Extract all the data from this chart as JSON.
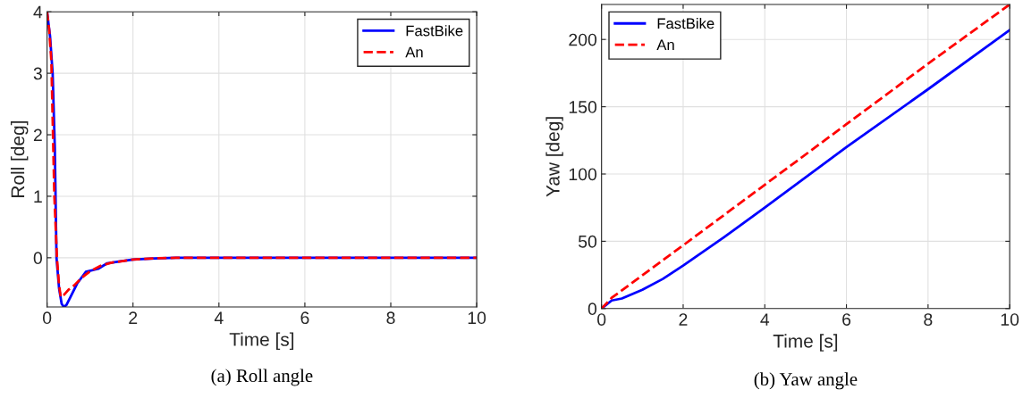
{
  "chart_data": [
    {
      "type": "line",
      "xlabel": "Time [s]",
      "ylabel": "Roll [deg]",
      "xlim": [
        0,
        10
      ],
      "ylim": [
        -0.8,
        4
      ],
      "xticks": [
        0,
        2,
        4,
        6,
        8,
        10
      ],
      "yticks": [
        0,
        1,
        2,
        3,
        4
      ],
      "grid": true,
      "legend": "top right",
      "annotations": [
        "(a) Roll angle"
      ],
      "series": [
        {
          "name": "FastBike",
          "color": "#0000ff",
          "line_style": "solid",
          "x": [
            0,
            0.07,
            0.13,
            0.18,
            0.22,
            0.28,
            0.34,
            0.39,
            0.45,
            0.55,
            0.7,
            0.9,
            1.19,
            1.4,
            1.7,
            2,
            2.5,
            3,
            4,
            6,
            8,
            10
          ],
          "values": [
            4,
            3.6,
            3.0,
            1.8,
            0,
            -0.5,
            -0.75,
            -0.8,
            -0.77,
            -0.63,
            -0.42,
            -0.23,
            -0.18,
            -0.09,
            -0.06,
            -0.03,
            -0.01,
            0,
            0,
            0,
            0,
            0
          ]
        },
        {
          "name": "An",
          "color": "#ff0000",
          "line_style": "dashed",
          "x": [
            0,
            0.05,
            0.1,
            0.17,
            0.23,
            0.28,
            0.32,
            0.4,
            0.5,
            0.63,
            0.8,
            1.0,
            1.25,
            1.5,
            2,
            2.5,
            3,
            4,
            6,
            8,
            10
          ],
          "values": [
            4,
            3.7,
            3.2,
            1.0,
            0,
            -0.45,
            -0.64,
            -0.6,
            -0.52,
            -0.45,
            -0.33,
            -0.22,
            -0.13,
            -0.08,
            -0.03,
            -0.01,
            0,
            0,
            0,
            0,
            0
          ]
        }
      ]
    },
    {
      "type": "line",
      "xlabel": "Time [s]",
      "ylabel": "Yaw [deg]",
      "xlim": [
        0,
        10
      ],
      "ylim": [
        0,
        226
      ],
      "xticks": [
        0,
        2,
        4,
        6,
        8,
        10
      ],
      "yticks": [
        0,
        50,
        100,
        150,
        200
      ],
      "grid": true,
      "legend": "top left",
      "annotations": [
        "(b) Yaw angle"
      ],
      "series": [
        {
          "name": "FastBike",
          "color": "#0000ff",
          "line_style": "solid",
          "x": [
            0,
            0.25,
            0.5,
            1,
            1.5,
            2,
            3,
            4,
            6,
            8,
            10
          ],
          "values": [
            0,
            6,
            7.5,
            14,
            22,
            32,
            53,
            75,
            120,
            163,
            207
          ]
        },
        {
          "name": "An",
          "color": "#ff0000",
          "line_style": "dashed",
          "x": [
            0,
            0.25,
            2,
            4,
            6,
            8,
            10
          ],
          "values": [
            0,
            8,
            47,
            92,
            137,
            182,
            226
          ]
        }
      ]
    }
  ]
}
